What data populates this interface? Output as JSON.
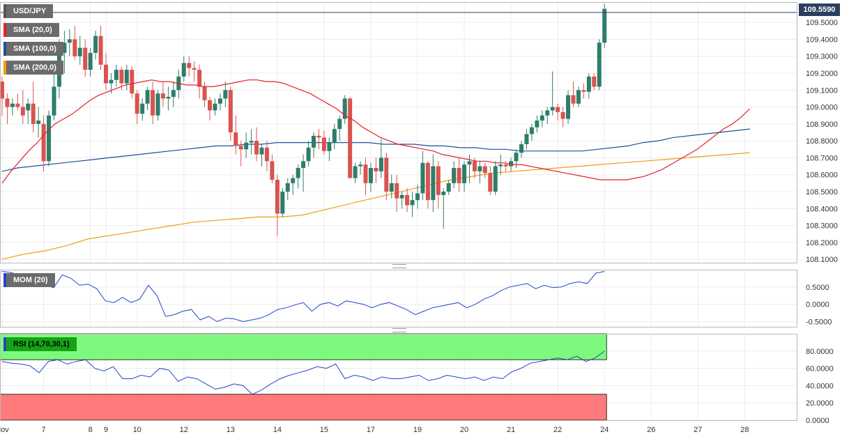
{
  "symbol": "USD/JPY",
  "last_price": "109.5590",
  "indicators": {
    "sma20": "SMA (20,0)",
    "sma100": "SMA (100,0)",
    "sma200": "SMA (200,0)",
    "mom": "MOM (20)",
    "rsi": "RSI (14,70,30,1)"
  },
  "colors": {
    "up": "#2e7d6a",
    "down": "#d9534f",
    "sma20": "#e3202b",
    "sma100": "#1f4e9c",
    "sma200": "#f39c12",
    "mom": "#2244cc",
    "rsi": "#2244cc",
    "overbought_zone": "#7dfa7d",
    "oversold_zone": "#ff7b7b",
    "last_price_line": "#2a3f5f"
  },
  "chart_data": [
    {
      "type": "candlestick",
      "title": "USD/JPY",
      "ylim": [
        108.08,
        109.62
      ],
      "y_ticks": [
        "109.5000",
        "109.4000",
        "109.3000",
        "109.2000",
        "109.1000",
        "109.0000",
        "108.9000",
        "108.8000",
        "108.7000",
        "108.6000",
        "108.5000",
        "108.4000",
        "108.3000",
        "108.2000",
        "108.1000"
      ],
      "x_labels": [
        {
          "label": "Nov",
          "bar": 0
        },
        {
          "label": "7",
          "bar": 8
        },
        {
          "label": "8",
          "bar": 17
        },
        {
          "label": "9",
          "bar": 20
        },
        {
          "label": "10",
          "bar": 26
        },
        {
          "label": "12",
          "bar": 35
        },
        {
          "label": "13",
          "bar": 44
        },
        {
          "label": "14",
          "bar": 53
        },
        {
          "label": "15",
          "bar": 62
        },
        {
          "label": "17",
          "bar": 71
        },
        {
          "label": "19",
          "bar": 80
        },
        {
          "label": "20",
          "bar": 89
        },
        {
          "label": "21",
          "bar": 98
        },
        {
          "label": "22",
          "bar": 107
        },
        {
          "label": "24",
          "bar": 116
        },
        {
          "label": "26",
          "bar": 125
        },
        {
          "label": "27",
          "bar": 134
        },
        {
          "label": "28",
          "bar": 143
        }
      ],
      "candles": [
        [
          109.15,
          109.18,
          108.95,
          109.05
        ],
        [
          109.05,
          109.08,
          108.9,
          109.0
        ],
        [
          109.0,
          109.05,
          108.95,
          109.02
        ],
        [
          109.02,
          109.08,
          108.98,
          109.0
        ],
        [
          109.0,
          109.1,
          108.9,
          108.95
        ],
        [
          108.98,
          109.05,
          108.9,
          109.02
        ],
        [
          109.02,
          109.15,
          108.85,
          108.9
        ],
        [
          108.9,
          109.0,
          108.82,
          108.92
        ],
        [
          108.9,
          108.95,
          108.62,
          108.68
        ],
        [
          108.68,
          108.98,
          108.65,
          108.95
        ],
        [
          108.95,
          109.2,
          108.92,
          109.12
        ],
        [
          109.12,
          109.4,
          109.05,
          109.32
        ],
        [
          109.32,
          109.45,
          109.2,
          109.38
        ],
        [
          109.38,
          109.46,
          109.3,
          109.4
        ],
        [
          109.4,
          109.48,
          109.28,
          109.3
        ],
        [
          109.3,
          109.42,
          109.25,
          109.35
        ],
        [
          109.35,
          109.4,
          109.18,
          109.22
        ],
        [
          109.22,
          109.35,
          109.18,
          109.32
        ],
        [
          109.32,
          109.45,
          109.28,
          109.42
        ],
        [
          109.42,
          109.48,
          109.22,
          109.25
        ],
        [
          109.25,
          109.32,
          109.1,
          109.14
        ],
        [
          109.14,
          109.2,
          109.08,
          109.16
        ],
        [
          109.16,
          109.25,
          109.12,
          109.22
        ],
        [
          109.22,
          109.24,
          109.1,
          109.14
        ],
        [
          109.14,
          109.25,
          109.1,
          109.22
        ],
        [
          109.22,
          109.24,
          109.05,
          109.08
        ],
        [
          109.08,
          109.1,
          108.9,
          108.96
        ],
        [
          108.96,
          109.05,
          108.92,
          109.02
        ],
        [
          109.02,
          109.12,
          108.98,
          109.1
        ],
        [
          109.1,
          109.15,
          108.9,
          108.95
        ],
        [
          108.95,
          109.1,
          108.92,
          109.08
        ],
        [
          109.08,
          109.15,
          109.0,
          109.05
        ],
        [
          109.05,
          109.12,
          108.98,
          109.06
        ],
        [
          109.06,
          109.15,
          109.0,
          109.1
        ],
        [
          109.1,
          109.22,
          109.05,
          109.18
        ],
        [
          109.18,
          109.3,
          109.15,
          109.26
        ],
        [
          109.26,
          109.3,
          109.18,
          109.23
        ],
        [
          109.23,
          109.27,
          109.15,
          109.22
        ],
        [
          109.22,
          109.25,
          109.05,
          109.12
        ],
        [
          109.12,
          109.15,
          109.0,
          109.04
        ],
        [
          109.04,
          109.06,
          108.92,
          108.98
        ],
        [
          108.98,
          109.05,
          108.95,
          109.02
        ],
        [
          109.02,
          109.08,
          108.98,
          109.05
        ],
        [
          109.05,
          109.15,
          109.0,
          109.1
        ],
        [
          109.1,
          109.12,
          108.8,
          108.85
        ],
        [
          108.85,
          108.95,
          108.72,
          108.77
        ],
        [
          108.77,
          108.8,
          108.65,
          108.75
        ],
        [
          108.75,
          108.85,
          108.7,
          108.79
        ],
        [
          108.79,
          108.87,
          108.72,
          108.8
        ],
        [
          108.8,
          108.88,
          108.68,
          108.72
        ],
        [
          108.72,
          108.78,
          108.65,
          108.76
        ],
        [
          108.76,
          108.8,
          108.62,
          108.68
        ],
        [
          108.68,
          108.72,
          108.55,
          108.57
        ],
        [
          108.57,
          108.6,
          108.24,
          108.37
        ],
        [
          108.37,
          108.52,
          108.35,
          108.5
        ],
        [
          108.5,
          108.58,
          108.45,
          108.55
        ],
        [
          108.55,
          108.6,
          108.48,
          108.58
        ],
        [
          108.58,
          108.66,
          108.52,
          108.64
        ],
        [
          108.64,
          108.72,
          108.5,
          108.68
        ],
        [
          108.68,
          108.8,
          108.65,
          108.76
        ],
        [
          108.76,
          108.85,
          108.7,
          108.83
        ],
        [
          108.83,
          108.87,
          108.75,
          108.82
        ],
        [
          108.82,
          108.86,
          108.72,
          108.74
        ],
        [
          108.74,
          108.82,
          108.68,
          108.79
        ],
        [
          108.79,
          108.9,
          108.75,
          108.87
        ],
        [
          108.87,
          108.95,
          108.8,
          108.93
        ],
        [
          108.93,
          109.07,
          108.9,
          109.05
        ],
        [
          109.05,
          109.06,
          108.58,
          108.58
        ],
        [
          108.58,
          108.67,
          108.55,
          108.65
        ],
        [
          108.65,
          108.68,
          108.6,
          108.66
        ],
        [
          108.66,
          108.7,
          108.48,
          108.55
        ],
        [
          108.55,
          108.67,
          108.5,
          108.64
        ],
        [
          108.64,
          108.7,
          108.55,
          108.62
        ],
        [
          108.62,
          108.81,
          108.58,
          108.7
        ],
        [
          108.7,
          108.73,
          108.45,
          108.5
        ],
        [
          108.5,
          108.6,
          108.46,
          108.55
        ],
        [
          108.55,
          108.6,
          108.38,
          108.46
        ],
        [
          108.46,
          108.5,
          108.4,
          108.48
        ],
        [
          108.48,
          108.52,
          108.38,
          108.42
        ],
        [
          108.42,
          108.5,
          108.35,
          108.45
        ],
        [
          108.45,
          108.54,
          108.4,
          108.49
        ],
        [
          108.49,
          108.74,
          108.45,
          108.67
        ],
        [
          108.67,
          108.68,
          108.4,
          108.45
        ],
        [
          108.45,
          108.72,
          108.38,
          108.65
        ],
        [
          108.65,
          108.68,
          108.4,
          108.48
        ],
        [
          108.48,
          108.52,
          108.28,
          108.5
        ],
        [
          108.5,
          108.57,
          108.48,
          108.55
        ],
        [
          108.55,
          108.68,
          108.52,
          108.64
        ],
        [
          108.64,
          108.7,
          108.5,
          108.55
        ],
        [
          108.55,
          108.68,
          108.5,
          108.66
        ],
        [
          108.66,
          108.72,
          108.55,
          108.68
        ],
        [
          108.68,
          108.7,
          108.58,
          108.62
        ],
        [
          108.62,
          108.68,
          108.55,
          108.65
        ],
        [
          108.65,
          108.67,
          108.58,
          108.61
        ],
        [
          108.61,
          108.65,
          108.48,
          108.5
        ],
        [
          108.5,
          108.68,
          108.48,
          108.65
        ],
        [
          108.65,
          108.72,
          108.6,
          108.66
        ],
        [
          108.66,
          108.68,
          108.62,
          108.65
        ],
        [
          108.65,
          108.7,
          108.62,
          108.68
        ],
        [
          108.68,
          108.75,
          108.64,
          108.73
        ],
        [
          108.73,
          108.8,
          108.7,
          108.78
        ],
        [
          108.78,
          108.87,
          108.75,
          108.84
        ],
        [
          108.84,
          108.9,
          108.8,
          108.88
        ],
        [
          108.88,
          108.95,
          108.85,
          108.92
        ],
        [
          108.92,
          108.98,
          108.88,
          108.95
        ],
        [
          108.95,
          109.0,
          108.9,
          108.98
        ],
        [
          108.98,
          109.21,
          108.95,
          109.0
        ],
        [
          109.0,
          109.02,
          108.92,
          108.97
        ],
        [
          108.97,
          109.0,
          108.88,
          108.93
        ],
        [
          108.93,
          109.1,
          108.9,
          109.07
        ],
        [
          109.07,
          109.15,
          109.0,
          109.02
        ],
        [
          109.02,
          109.12,
          109.0,
          109.1
        ],
        [
          109.1,
          109.14,
          109.05,
          109.09
        ],
        [
          109.09,
          109.2,
          109.05,
          109.18
        ],
        [
          109.18,
          109.2,
          109.1,
          109.12
        ],
        [
          109.12,
          109.4,
          109.1,
          109.38
        ],
        [
          109.38,
          109.61,
          109.35,
          109.58
        ]
      ],
      "sma20": [
        108.55,
        108.62,
        108.68,
        108.74,
        108.79,
        108.85,
        108.9,
        108.93,
        108.96,
        109.0,
        109.04,
        109.07,
        109.09,
        109.11,
        109.13,
        109.14,
        109.15,
        109.16,
        109.15,
        109.15,
        109.14,
        109.13,
        109.13,
        109.12,
        109.12,
        109.13,
        109.14,
        109.15,
        109.16,
        109.16,
        109.15,
        109.15,
        109.14,
        109.12,
        109.1,
        109.08,
        109.05,
        109.02,
        108.99,
        108.95,
        108.92,
        108.88,
        108.85,
        108.82,
        108.8,
        108.78,
        108.77,
        108.76,
        108.75,
        108.74,
        108.72,
        108.71,
        108.7,
        108.69,
        108.68,
        108.68,
        108.67,
        108.67,
        108.66,
        108.66,
        108.65,
        108.64,
        108.63,
        108.62,
        108.61,
        108.6,
        108.59,
        108.58,
        108.57,
        108.57,
        108.57,
        108.57,
        108.58,
        108.59,
        108.61,
        108.63,
        108.66,
        108.69,
        108.72,
        108.75,
        108.79,
        108.83,
        108.87,
        108.9,
        108.94,
        108.99
      ],
      "sma100": [
        108.62,
        108.64,
        108.65,
        108.66,
        108.67,
        108.68,
        108.69,
        108.7,
        108.71,
        108.72,
        108.73,
        108.74,
        108.75,
        108.76,
        108.77,
        108.77,
        108.78,
        108.78,
        108.79,
        108.79,
        108.79,
        108.79,
        108.79,
        108.79,
        108.79,
        108.78,
        108.78,
        108.78,
        108.77,
        108.77,
        108.76,
        108.76,
        108.75,
        108.75,
        108.74,
        108.74,
        108.74,
        108.74,
        108.74,
        108.75,
        108.76,
        108.77,
        108.79,
        108.8,
        108.82,
        108.83,
        108.84,
        108.85,
        108.86,
        108.87
      ],
      "sma200": [
        108.1,
        108.13,
        108.15,
        108.18,
        108.22,
        108.24,
        108.26,
        108.28,
        108.3,
        108.32,
        108.33,
        108.34,
        108.35,
        108.35,
        108.36,
        108.39,
        108.42,
        108.45,
        108.48,
        108.51,
        108.54,
        108.57,
        108.59,
        108.61,
        108.62,
        108.63,
        108.64,
        108.65,
        108.66,
        108.67,
        108.68,
        108.69,
        108.7,
        108.71,
        108.72,
        108.73
      ],
      "sma_x_span": [
        0,
        144
      ]
    },
    {
      "type": "line",
      "title": "MOM (20)",
      "ylim": [
        -0.65,
        1.0
      ],
      "y_ticks": [
        "0.5000",
        "0.0000",
        "-0.5000"
      ],
      "values": [
        0.95,
        0.92,
        0.85,
        0.72,
        0.62,
        0.55,
        0.48,
        0.85,
        0.75,
        0.55,
        0.58,
        0.45,
        0.1,
        0.05,
        0.2,
        0.05,
        0.15,
        0.55,
        0.25,
        -0.35,
        -0.3,
        -0.2,
        -0.15,
        -0.45,
        -0.35,
        -0.5,
        -0.4,
        -0.42,
        -0.5,
        -0.45,
        -0.4,
        -0.3,
        -0.15,
        -0.1,
        -0.02,
        0.05,
        -0.2,
        0.0,
        0.05,
        -0.05,
        0.1,
        0.05,
        0.0,
        -0.1,
        0.0,
        0.05,
        -0.05,
        -0.15,
        -0.3,
        -0.2,
        -0.1,
        -0.05,
        0.0,
        0.05,
        -0.1,
        0.0,
        0.15,
        0.25,
        0.4,
        0.5,
        0.55,
        0.6,
        0.45,
        0.55,
        0.48,
        0.5,
        0.6,
        0.65,
        0.6,
        0.9,
        0.95
      ]
    },
    {
      "type": "line",
      "title": "RSI (14,70,30,1)",
      "ylim": [
        0,
        100
      ],
      "y_ticks": [
        "80.0000",
        "60.0000",
        "40.0000",
        "20.0000",
        "0.0000"
      ],
      "overbought": 70,
      "oversold": 30,
      "values": [
        68,
        66,
        65,
        63,
        55,
        68,
        70,
        65,
        68,
        70,
        60,
        57,
        62,
        48,
        48,
        52,
        50,
        60,
        58,
        45,
        50,
        48,
        42,
        36,
        38,
        42,
        40,
        30,
        35,
        42,
        48,
        52,
        55,
        58,
        62,
        60,
        65,
        48,
        52,
        50,
        46,
        50,
        48,
        48,
        50,
        52,
        46,
        48,
        52,
        50,
        48,
        50,
        46,
        50,
        48,
        56,
        60,
        66,
        68,
        70,
        72,
        70,
        74,
        68,
        72,
        80
      ]
    }
  ]
}
